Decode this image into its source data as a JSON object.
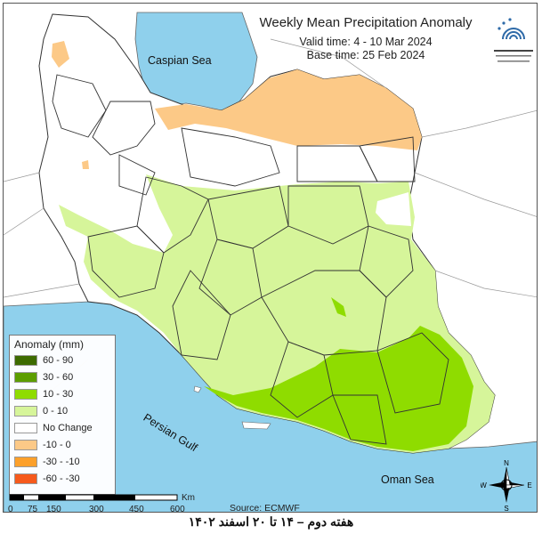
{
  "header": {
    "title": "Weekly Mean Precipitation Anomaly",
    "valid_time": "Valid time:  4 - 10 Mar 2024",
    "base_time": "Base time: 25 Feb 2024"
  },
  "seas": {
    "caspian": "Caspian Sea",
    "persian_gulf": "Persian Gulf",
    "oman": "Oman Sea"
  },
  "legend": {
    "title": "Anomaly (mm)",
    "items": [
      {
        "label": "60 - 90",
        "color": "#3d6b00"
      },
      {
        "label": "30 - 60",
        "color": "#5c9e00"
      },
      {
        "label": "10 - 30",
        "color": "#8fdc00"
      },
      {
        "label": "0 - 10",
        "color": "#d6f59a"
      },
      {
        "label": "No Change",
        "color": "#ffffff"
      },
      {
        "label": "-10 - 0",
        "color": "#fcc987"
      },
      {
        "label": "-30 - -10",
        "color": "#fca02a"
      },
      {
        "label": "-60 - -30",
        "color": "#f65a1c"
      }
    ]
  },
  "source": "Source: ECMWF",
  "scale_bar": {
    "unit": "Km",
    "ticks": [
      "0",
      "75",
      "150",
      "300",
      "450",
      "600"
    ]
  },
  "compass": {
    "n": "N",
    "s": "S",
    "e": "E",
    "w": "W"
  },
  "footer": "هفته دوم – ۱۴ تا ۲۰ اسفند ۱۴۰۲",
  "colors": {
    "water": "#8fd0ec",
    "neighbor_land": "#ffffff",
    "positive_light": "#d6f59a",
    "positive_mid": "#8fdc00",
    "negative_light": "#fcc987"
  }
}
